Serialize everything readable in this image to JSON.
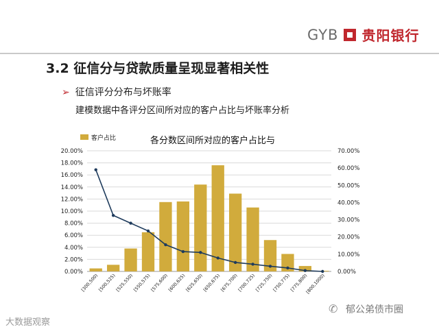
{
  "header": {
    "logo_text": "GYB",
    "logo_cn": "贵阳银行"
  },
  "page": {
    "title": "3.2 征信分与贷款质量呈现显著相关性",
    "bullet_marker": "➢",
    "bullet": "征信评分分布与坏账率",
    "subtitle": "建模数据中各评分区间所对应的客户占比与坏账率分析"
  },
  "chart_data": {
    "type": "bar",
    "title": "各分数区间所对应的客户占比与",
    "legend": {
      "label": "客户占比",
      "position": "top-left"
    },
    "categories": [
      "[300,500)",
      "[500,525)",
      "[525,550)",
      "[550,575)",
      "[575,600)",
      "[600,625)",
      "[625,650)",
      "[650,675)",
      "[675,700)",
      "[700,725)",
      "[725,750)",
      "[750,775)",
      "[775,800)",
      "[800,1000)"
    ],
    "series": [
      {
        "name": "客户占比",
        "type": "bar",
        "axis": "left",
        "values": [
          0.5,
          1.1,
          3.8,
          6.5,
          11.5,
          11.6,
          14.4,
          17.6,
          12.9,
          10.6,
          5.2,
          2.9,
          0.9,
          0.1
        ]
      },
      {
        "name": "",
        "type": "line",
        "axis": "right",
        "values": [
          59.0,
          32.5,
          28.0,
          23.5,
          15.5,
          11.5,
          11.0,
          7.8,
          5.2,
          4.2,
          3.0,
          2.0,
          0.5,
          0.0
        ]
      }
    ],
    "y_left": {
      "min": 0,
      "max": 20,
      "ticks": [
        "0.00%",
        "2.00%",
        "4.00%",
        "6.00%",
        "8.00%",
        "10.00%",
        "12.00%",
        "14.00%",
        "16.00%",
        "18.00%",
        "20.00%"
      ]
    },
    "y_right": {
      "min": 0,
      "max": 70,
      "ticks": [
        "0.00%",
        "10.00%",
        "20.00%",
        "30.00%",
        "40.00%",
        "50.00%",
        "60.00%",
        "70.00%"
      ]
    },
    "colors": {
      "bar": "#d1ab3c",
      "line": "#1e3b5c",
      "grid": "#d9d9d9"
    },
    "grid": true
  },
  "footer": {
    "left": "大数据观察",
    "right_icon": "wechat-icon",
    "right": "郁公弟债市圈"
  }
}
